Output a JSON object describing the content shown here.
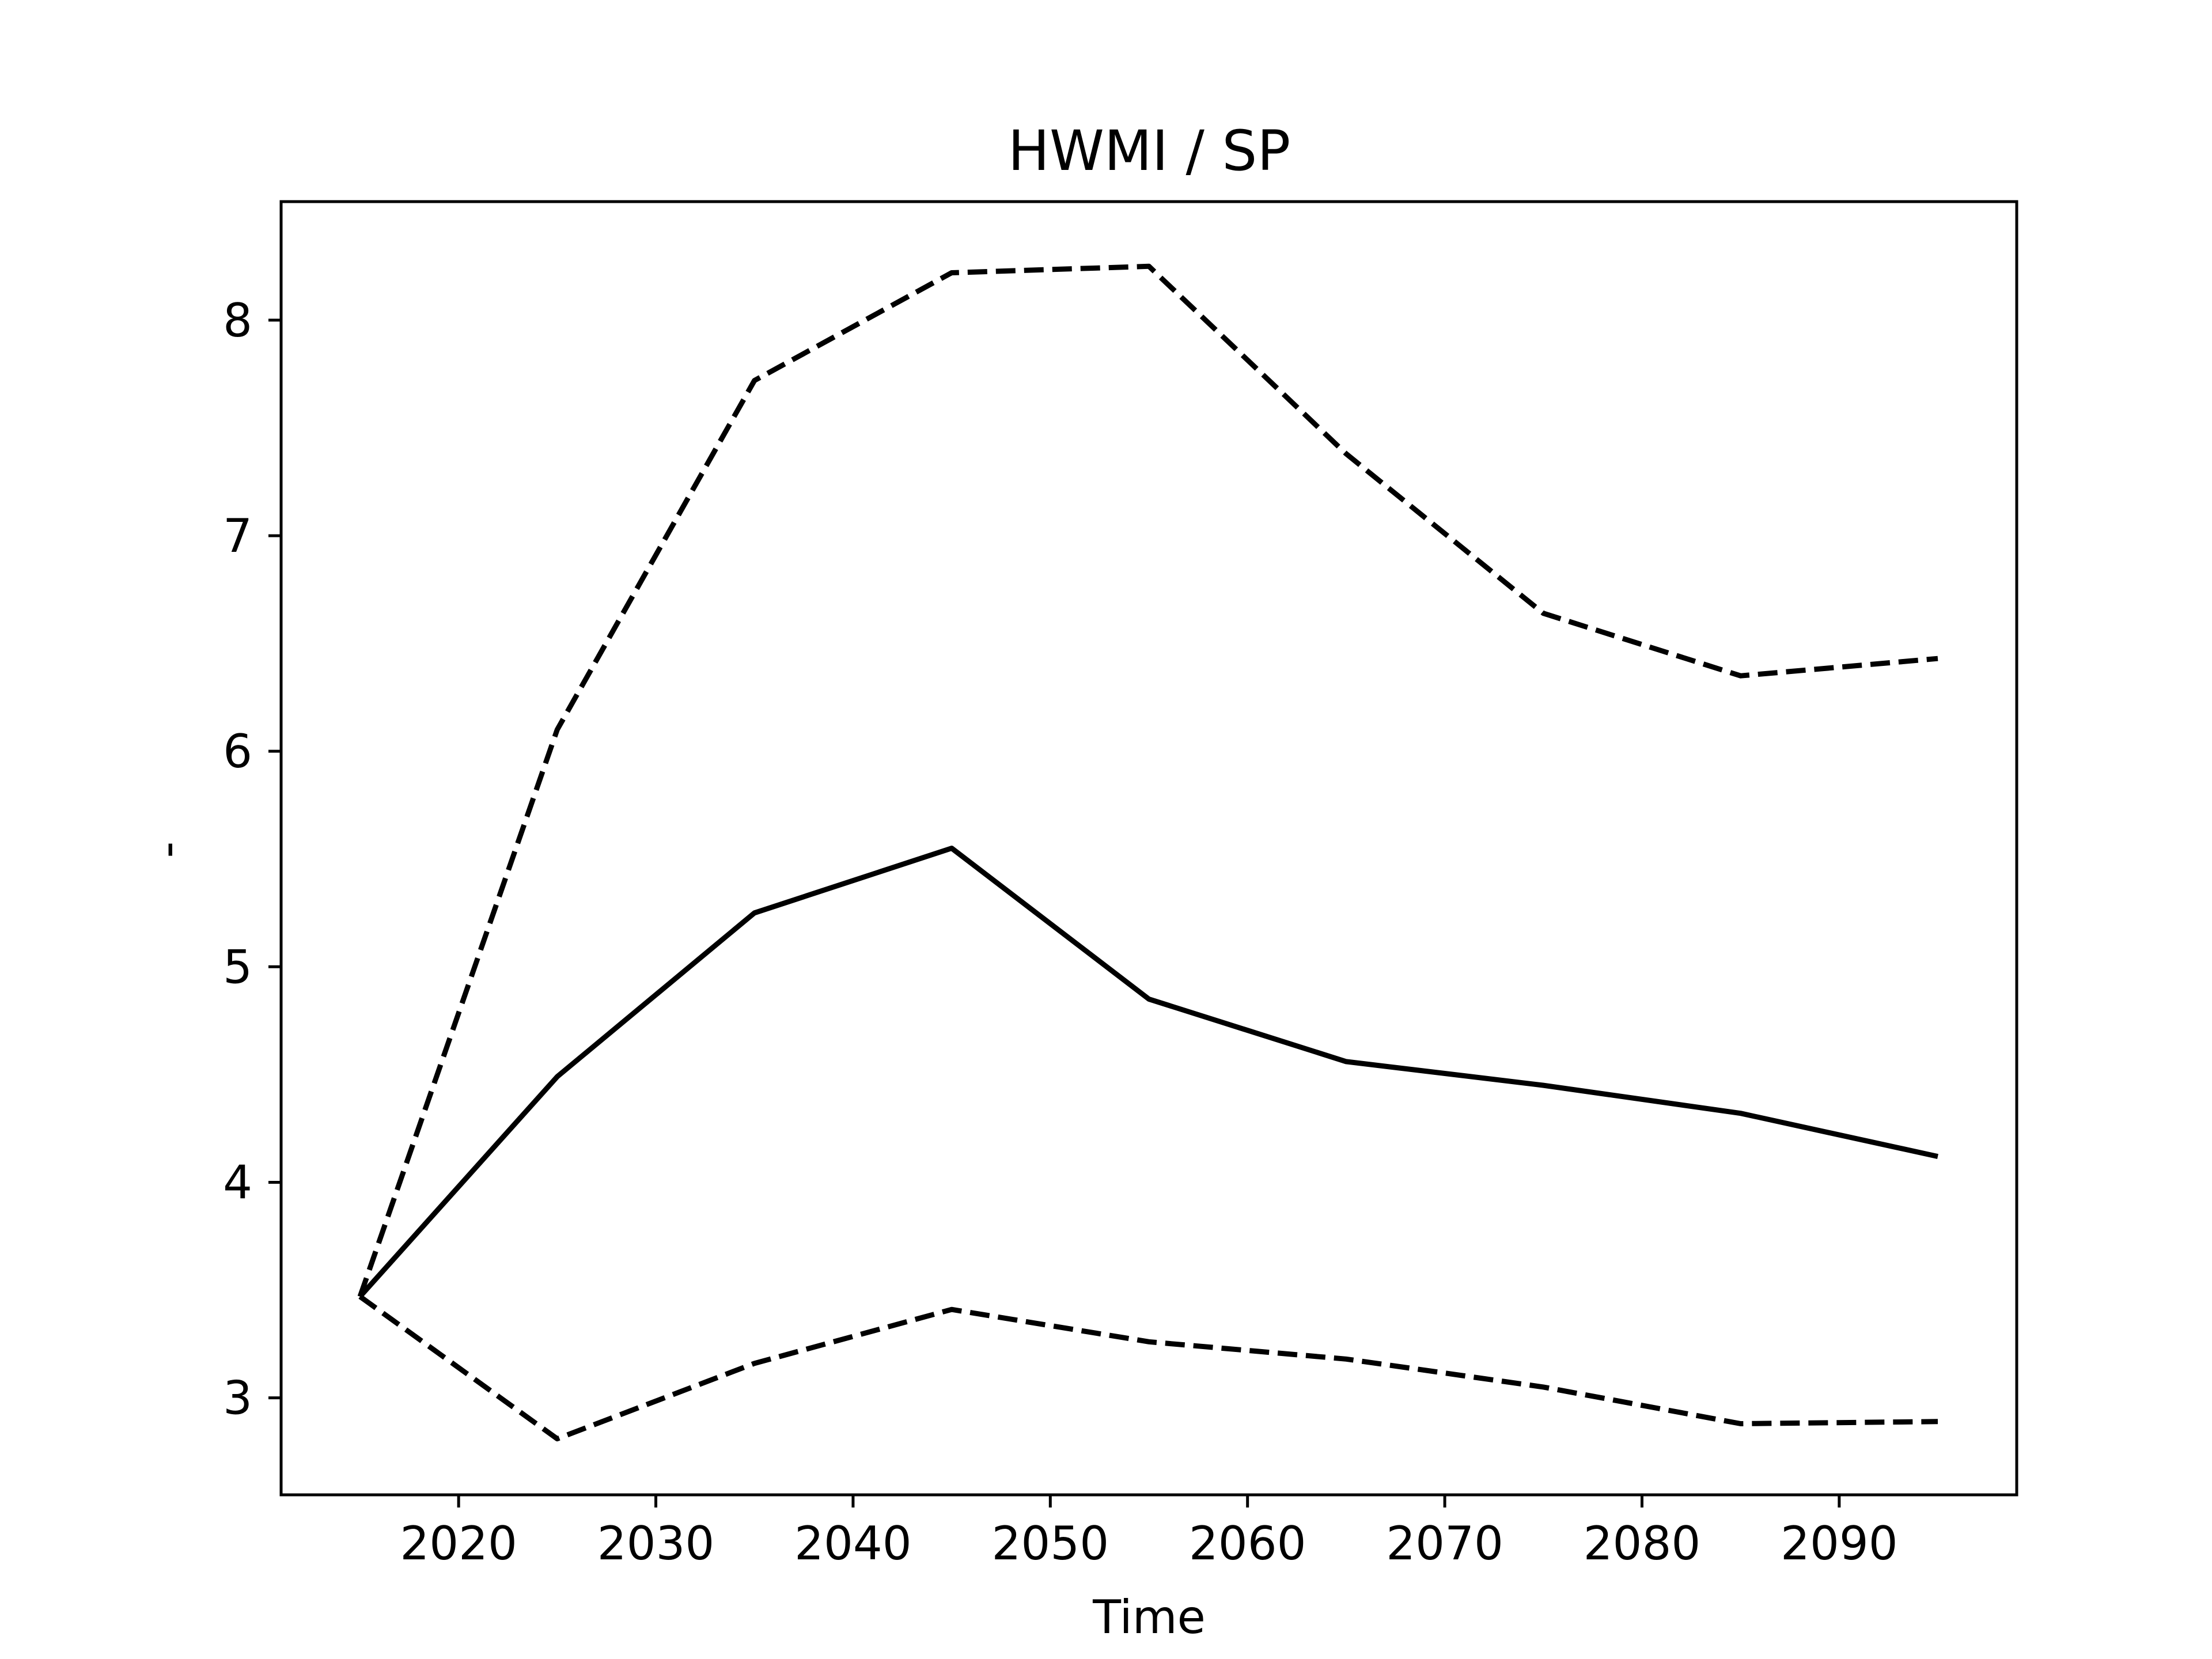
{
  "chart_data": {
    "type": "line",
    "title": "HWMI / SP",
    "xlabel": "Time",
    "ylabel": "-",
    "xlim": [
      2011,
      2099
    ],
    "ylim": [
      2.55,
      8.55
    ],
    "xticks": [
      2020,
      2030,
      2040,
      2050,
      2060,
      2070,
      2080,
      2090
    ],
    "yticks": [
      3,
      4,
      5,
      6,
      7,
      8
    ],
    "grid": false,
    "x": [
      2015,
      2025,
      2035,
      2045,
      2055,
      2065,
      2075,
      2085,
      2095
    ],
    "series": [
      {
        "style": "solid",
        "color": "#000000",
        "values": [
          3.47,
          4.49,
          5.25,
          5.55,
          4.85,
          4.56,
          4.45,
          4.32,
          4.12
        ]
      },
      {
        "style": "dashed",
        "color": "#000000",
        "values": [
          3.47,
          6.1,
          7.72,
          8.22,
          8.25,
          7.38,
          6.64,
          6.35,
          6.43
        ]
      },
      {
        "style": "dashed",
        "color": "#000000",
        "values": [
          3.47,
          2.81,
          3.16,
          3.41,
          3.26,
          3.18,
          3.05,
          2.88,
          2.89
        ]
      }
    ]
  }
}
